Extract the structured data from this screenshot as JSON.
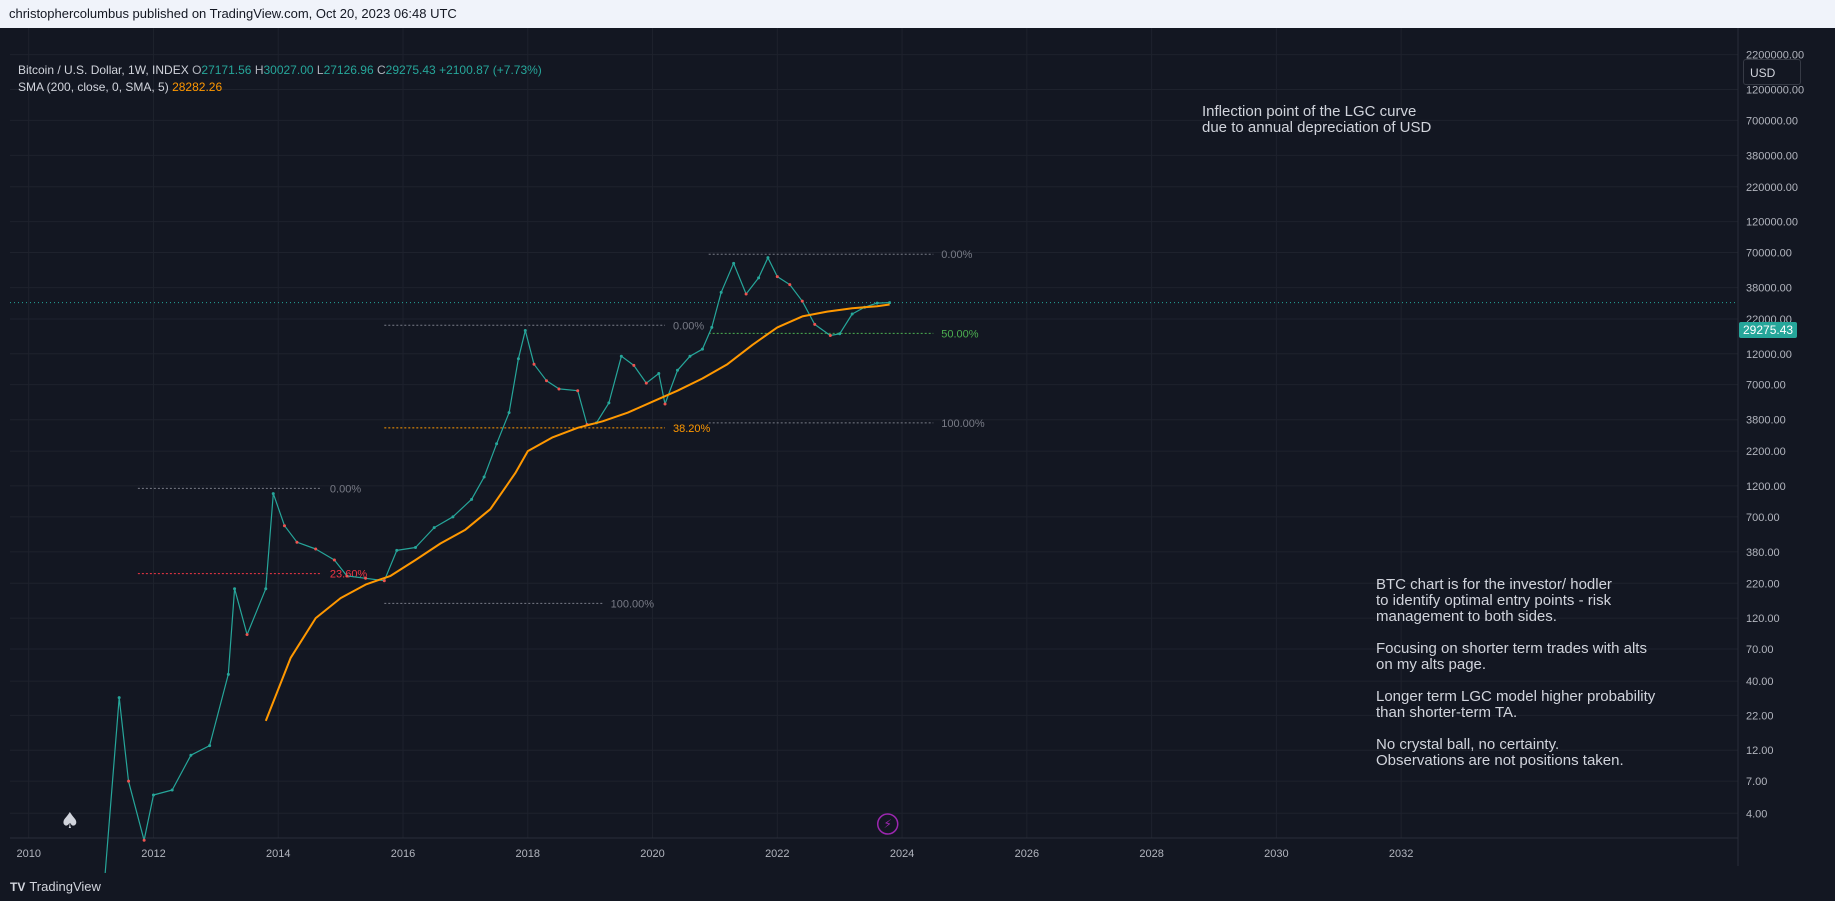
{
  "header": {
    "published": "christophercolumbus published on TradingView.com, Oct 20, 2023 06:48 UTC"
  },
  "legend": {
    "symbol": "Bitcoin / U.S. Dollar, 1W, INDEX",
    "open_label": "O",
    "open": "27171.56",
    "high_label": "H",
    "high": "30027.00",
    "low_label": "L",
    "low": "27126.96",
    "close_label": "C",
    "close": "29275.43",
    "change": "+2100.87 (+7.73%)",
    "sma_label": "SMA (200, close, 0, SMA, 5)",
    "sma_value": "28282.26"
  },
  "currency": "USD",
  "last_price": "29275.43",
  "annotations": {
    "top": "Inflection point of the LGC curve\ndue to annual depreciation of USD",
    "notes": [
      "BTC chart is for the investor/ hodler\nto identify optimal entry points - risk\nmanagement to both sides.",
      "Focusing on shorter term trades with alts\non my alts page.",
      "Longer term LGC model higher probability\nthan shorter-term TA.",
      "No crystal ball, no certainty.\nObservations are not positions taken."
    ]
  },
  "footer": {
    "brand": "TradingView",
    "logo_mark": "TV"
  },
  "colors": {
    "background": "#131722",
    "up": "#26a69a",
    "down": "#ef5350",
    "sma": "#ff9800",
    "fib_green": "#4caf50",
    "fib_red": "#f23645"
  },
  "chart_data": {
    "type": "line",
    "y_scale": "log",
    "x_ticks": [
      "2010",
      "2012",
      "2014",
      "2016",
      "2018",
      "2020",
      "2022",
      "2024",
      "2026",
      "2028",
      "2030",
      "2032"
    ],
    "y_ticks": [
      "2200000.00",
      "1200000.00",
      "700000.00",
      "380000.00",
      "220000.00",
      "120000.00",
      "70000.00",
      "38000.00",
      "22000.00",
      "12000.00",
      "7000.00",
      "3800.00",
      "2200.00",
      "1200.00",
      "700.00",
      "380.00",
      "220.00",
      "120.00",
      "70.00",
      "40.00",
      "22.00",
      "12.00",
      "7.00",
      "4.00"
    ],
    "ylim": [
      2.6,
      3500000
    ],
    "xlim": [
      2009.7,
      2037.4
    ],
    "series": [
      {
        "name": "Bitcoin / U.S. Dollar",
        "x": [
          2011.2,
          2011.45,
          2011.6,
          2011.85,
          2012.0,
          2012.3,
          2012.6,
          2012.9,
          2013.2,
          2013.3,
          2013.5,
          2013.8,
          2013.92,
          2014.1,
          2014.3,
          2014.6,
          2014.9,
          2015.1,
          2015.4,
          2015.7,
          2015.9,
          2016.2,
          2016.5,
          2016.8,
          2017.1,
          2017.3,
          2017.5,
          2017.7,
          2017.85,
          2017.96,
          2018.1,
          2018.3,
          2018.5,
          2018.8,
          2018.95,
          2019.1,
          2019.3,
          2019.5,
          2019.7,
          2019.9,
          2020.1,
          2020.2,
          2020.4,
          2020.6,
          2020.8,
          2020.95,
          2021.1,
          2021.3,
          2021.5,
          2021.7,
          2021.85,
          2022.0,
          2022.2,
          2022.4,
          2022.6,
          2022.85,
          2023.0,
          2023.2,
          2023.4,
          2023.6,
          2023.8
        ],
        "y": [
          1,
          30,
          7,
          2.5,
          5.5,
          6,
          11,
          13,
          45,
          200,
          90,
          200,
          1050,
          600,
          450,
          400,
          330,
          250,
          240,
          230,
          390,
          410,
          580,
          700,
          950,
          1400,
          2500,
          4300,
          11000,
          18000,
          10000,
          7500,
          6500,
          6300,
          3500,
          3600,
          5100,
          11500,
          9800,
          7200,
          8500,
          5000,
          9000,
          11500,
          13000,
          19000,
          35000,
          58000,
          34000,
          45000,
          64000,
          46000,
          40000,
          30000,
          20000,
          16500,
          17000,
          24000,
          27000,
          29000,
          29275.43
        ]
      },
      {
        "name": "SMA (200, close, 0, SMA, 5)",
        "x": [
          2013.8,
          2014.2,
          2014.6,
          2015.0,
          2015.4,
          2015.8,
          2016.2,
          2016.6,
          2017.0,
          2017.4,
          2017.8,
          2018.0,
          2018.4,
          2018.8,
          2019.2,
          2019.6,
          2020.0,
          2020.4,
          2020.8,
          2021.2,
          2021.6,
          2022.0,
          2022.4,
          2022.8,
          2023.2,
          2023.6,
          2023.8
        ],
        "y": [
          20,
          60,
          120,
          170,
          215,
          250,
          330,
          440,
          560,
          800,
          1500,
          2200,
          2800,
          3300,
          3700,
          4300,
          5200,
          6300,
          7800,
          10000,
          14000,
          19000,
          23000,
          25000,
          26500,
          27500,
          28282.26
        ]
      }
    ],
    "fib_labels": [
      "0.00%",
      "23.60%",
      "100.00%",
      "0.00%",
      "38.20%",
      "0.00%",
      "50.00%",
      "100.00%"
    ],
    "fib_levels": [
      {
        "label": "0.00%",
        "price": 1150,
        "x0": 2011.75,
        "x1": 2014.7,
        "color": "#787b86"
      },
      {
        "label": "23.60%",
        "price": 260,
        "x0": 2011.75,
        "x1": 2014.7,
        "color": "#f23645"
      },
      {
        "label": "100.00%",
        "price": 155,
        "x0": 2015.7,
        "x1": 2019.2,
        "color": "#787b86"
      },
      {
        "label": "0.00%",
        "price": 19700,
        "x0": 2015.7,
        "x1": 2020.2,
        "color": "#787b86"
      },
      {
        "label": "38.20%",
        "price": 3300,
        "x0": 2015.7,
        "x1": 2020.2,
        "color": "#ff9800"
      },
      {
        "label": "0.00%",
        "price": 68000,
        "x0": 2020.9,
        "x1": 2024.5,
        "color": "#787b86"
      },
      {
        "label": "50.00%",
        "price": 17100,
        "x0": 2020.9,
        "x1": 2024.5,
        "color": "#4caf50"
      },
      {
        "label": "100.00%",
        "price": 3600,
        "x0": 2020.9,
        "x1": 2024.5,
        "color": "#787b86"
      }
    ],
    "grid": true,
    "legend_position": "top-left"
  }
}
